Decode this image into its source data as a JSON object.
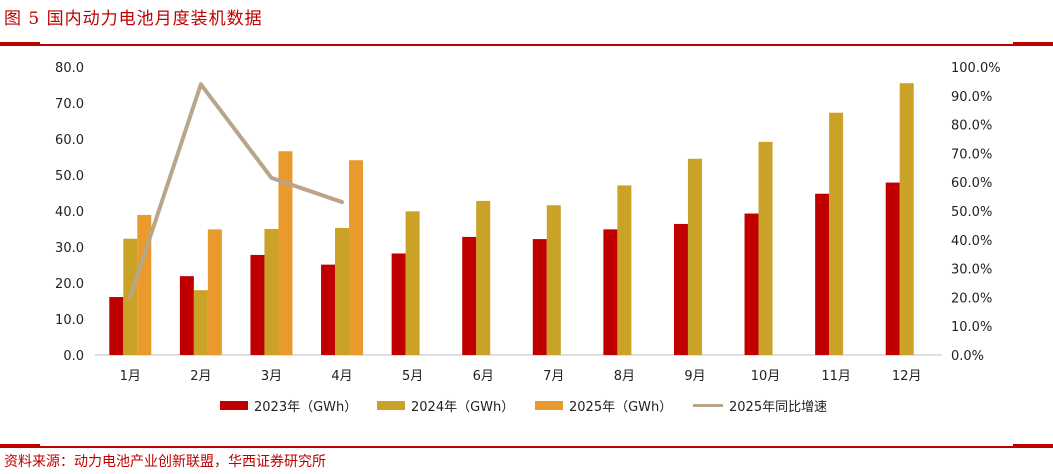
{
  "header": {
    "title": "图 5  国内动力电池月度装机数据"
  },
  "footer": {
    "source": "资料来源：动力电池产业创新联盟，华西证券研究所"
  },
  "colors": {
    "accent": "#c00000",
    "series_2023": "#c00000",
    "series_2024": "#c9a227",
    "series_2025": "#e89a2c",
    "series_yoy": "#b9a58a"
  },
  "chart_data": {
    "type": "bar",
    "categories": [
      "1月",
      "2月",
      "3月",
      "4月",
      "5月",
      "6月",
      "7月",
      "8月",
      "9月",
      "10月",
      "11月",
      "12月"
    ],
    "series": [
      {
        "name": "2023年（GWh）",
        "values": [
          16.1,
          21.9,
          27.8,
          25.1,
          28.2,
          32.8,
          32.2,
          34.9,
          36.4,
          39.3,
          44.8,
          47.9
        ]
      },
      {
        "name": "2024年（GWh）",
        "values": [
          32.3,
          18.0,
          35.0,
          35.3,
          39.9,
          42.8,
          41.6,
          47.1,
          54.5,
          59.2,
          67.3,
          75.5
        ]
      },
      {
        "name": "2025年（GWh）",
        "values": [
          38.9,
          34.9,
          56.6,
          54.1,
          null,
          null,
          null,
          null,
          null,
          null,
          null,
          null
        ]
      }
    ],
    "line_series": {
      "name": "2025年同比增速",
      "axis": "right",
      "values": [
        20.3,
        94.0,
        61.5,
        53.1,
        null,
        null,
        null,
        null,
        null,
        null,
        null,
        null
      ]
    },
    "left_axis": {
      "ylim": [
        0,
        80
      ],
      "ticks": [
        "0.0",
        "10.0",
        "20.0",
        "30.0",
        "40.0",
        "50.0",
        "60.0",
        "70.0",
        "80.0"
      ]
    },
    "right_axis": {
      "ylim": [
        0,
        100
      ],
      "ticks": [
        "0.0%",
        "10.0%",
        "20.0%",
        "30.0%",
        "40.0%",
        "50.0%",
        "60.0%",
        "70.0%",
        "80.0%",
        "90.0%",
        "100.0%"
      ]
    },
    "grid": false,
    "legend_position": "bottom"
  }
}
